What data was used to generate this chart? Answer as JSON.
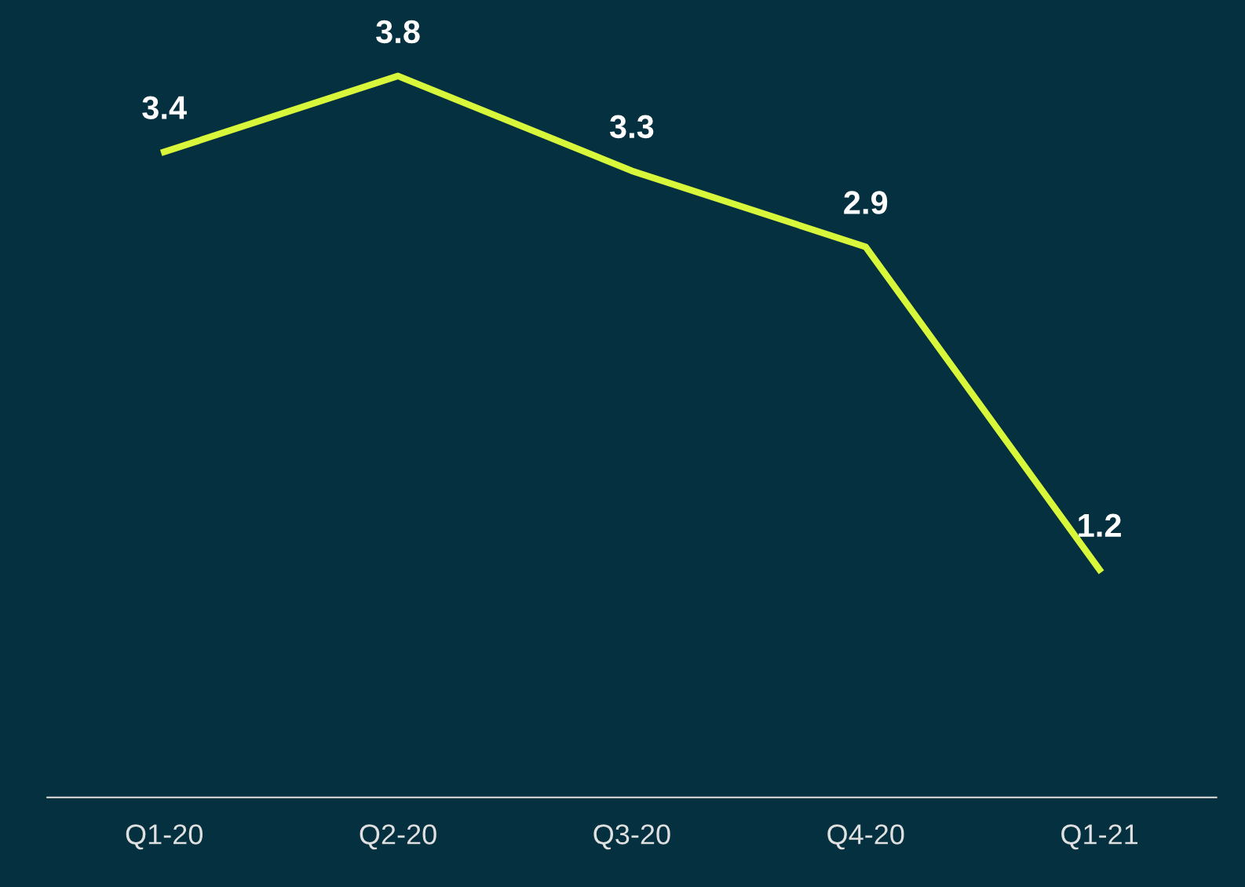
{
  "chart_data": {
    "type": "line",
    "categories": [
      "Q1-20",
      "Q2-20",
      "Q3-20",
      "Q4-20",
      "Q1-21"
    ],
    "series": [
      {
        "color": "#d9f73a",
        "values": [
          3.4,
          3.8,
          3.3,
          2.9,
          1.2
        ]
      }
    ],
    "data_labels": true,
    "ylim": [
      0,
      4.2
    ],
    "tick_labels": "x",
    "marker": "none",
    "line_style": "solid"
  }
}
